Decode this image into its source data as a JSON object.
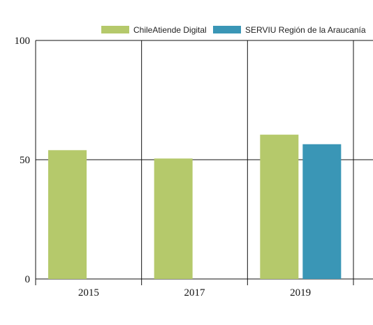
{
  "chart_data": {
    "type": "bar",
    "title": "",
    "xlabel": "",
    "ylabel": "",
    "categories": [
      "2015",
      "2017",
      "2019"
    ],
    "series": [
      {
        "name": "ChileAtiende Digital",
        "color": "#b5c96b",
        "values": [
          54,
          50.5,
          60.5
        ]
      },
      {
        "name": "SERVIU Región de la Araucanía",
        "color": "#3a96b6",
        "values": [
          null,
          null,
          56.5
        ]
      }
    ],
    "ylim": [
      0,
      100
    ],
    "yticks": [
      "0",
      "50",
      "100"
    ],
    "grid": true,
    "legend_position": "top-right"
  }
}
